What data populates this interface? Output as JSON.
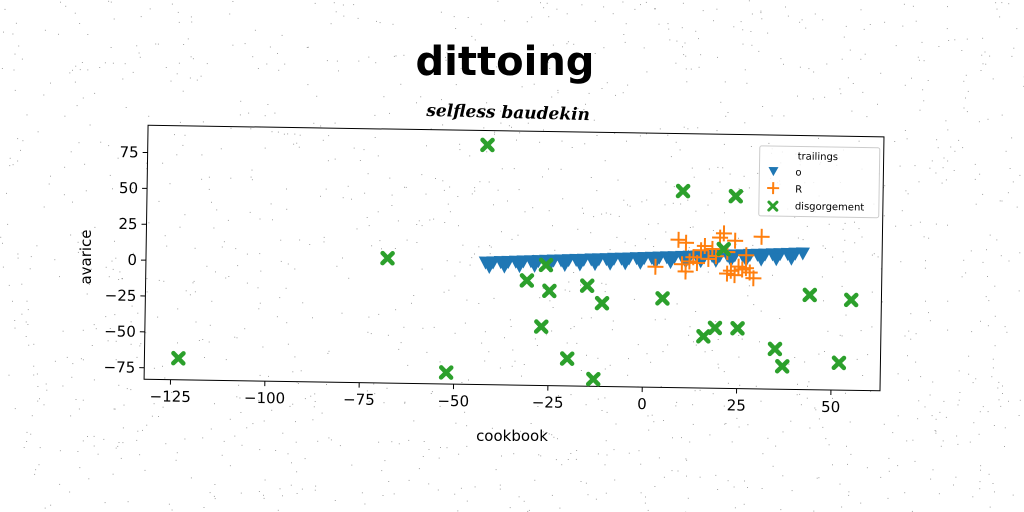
{
  "chart_data": {
    "type": "scatter",
    "title": "dittoing",
    "subtitle": "selfless baudekin",
    "xlabel": "cookbook",
    "ylabel": "avarice",
    "xlim": [
      -132,
      63
    ],
    "ylim": [
      -83,
      94
    ],
    "xticks": [
      -125,
      -100,
      -75,
      -50,
      -25,
      0,
      25,
      50
    ],
    "yticks": [
      -75,
      -50,
      -25,
      0,
      25,
      50,
      75
    ],
    "xtick_labels": [
      "−125",
      "−100",
      "−75",
      "−50",
      "−25",
      "0",
      "25",
      "50"
    ],
    "ytick_labels": [
      "−75",
      "−50",
      "−25",
      "0",
      "25",
      "50",
      "75"
    ],
    "legend": {
      "title": "trailings",
      "location": "upper right",
      "entries": [
        "o",
        "R",
        "disgorgement"
      ]
    },
    "series": [
      {
        "name": "o",
        "marker": "triangle-down",
        "color": "#1f77b4",
        "x": [
          -42,
          -40,
          -38,
          -36,
          -34,
          -32,
          -30,
          -28,
          -26,
          -24,
          -22,
          -20,
          -18,
          -16,
          -14,
          -12,
          -10,
          -8,
          -6,
          -4,
          -2,
          0,
          2,
          4,
          6,
          8,
          10,
          12,
          14,
          16,
          18,
          20,
          22,
          24,
          26,
          28,
          30,
          32,
          34,
          36,
          38,
          40,
          42,
          -41,
          -37,
          -33,
          -29,
          -25,
          -21,
          -17,
          -13,
          -9,
          -5,
          -1,
          3,
          7,
          11,
          15,
          19,
          23,
          27,
          31,
          35,
          39
        ],
        "y": [
          2,
          2.2,
          2.5,
          2.7,
          2.9,
          3.2,
          3.4,
          3.6,
          3.9,
          4.1,
          4.3,
          4.6,
          4.8,
          5,
          5.3,
          5.5,
          5.7,
          6,
          6.2,
          6.4,
          6.7,
          6.9,
          7.1,
          7.4,
          7.6,
          7.8,
          8.1,
          8.3,
          8.5,
          8.8,
          9,
          9.2,
          9.5,
          9.7,
          9.9,
          10.2,
          10.4,
          10.6,
          10.9,
          11.1,
          11.3,
          11.6,
          11.8,
          -1,
          -0.6,
          -0.1,
          0.3,
          0.8,
          1.2,
          1.7,
          2.1,
          2.6,
          3,
          3.5,
          3.9,
          4.4,
          4.8,
          5.3,
          5.7,
          6.2,
          6.6,
          7.1,
          7.5,
          8
        ]
      },
      {
        "name": "R",
        "marker": "plus",
        "color": "#ff7f0e",
        "x": [
          9,
          11,
          16,
          21,
          24,
          27,
          31,
          18,
          13,
          22,
          25,
          19,
          14,
          10,
          28,
          23,
          17,
          26,
          20,
          12,
          29,
          15,
          22,
          3,
          11,
          24,
          27
        ],
        "y": [
          20,
          18,
          16,
          25,
          20,
          10,
          23,
          14,
          8,
          12,
          2,
          9,
          4,
          3,
          -2,
          -1,
          7,
          0,
          22,
          5,
          -6,
          13,
          -3,
          1,
          -2,
          -4,
          1
        ]
      },
      {
        "name": "disgorgement",
        "marker": "x-filled",
        "color": "#2ca02c",
        "x": [
          -42,
          10,
          24,
          -68,
          -123,
          -26,
          -31,
          -25,
          -15,
          -11,
          -27,
          -20,
          -13,
          -52,
          5,
          16,
          19,
          25,
          21,
          35,
          37,
          44,
          52,
          55
        ],
        "y": [
          84,
          54,
          51,
          4,
          -68,
          1,
          -10,
          -17,
          -13,
          -25,
          -42,
          -64,
          -78,
          -75,
          -21,
          -47,
          -41,
          -41,
          14,
          -55,
          -67,
          -17,
          -64,
          -20
        ]
      }
    ]
  }
}
